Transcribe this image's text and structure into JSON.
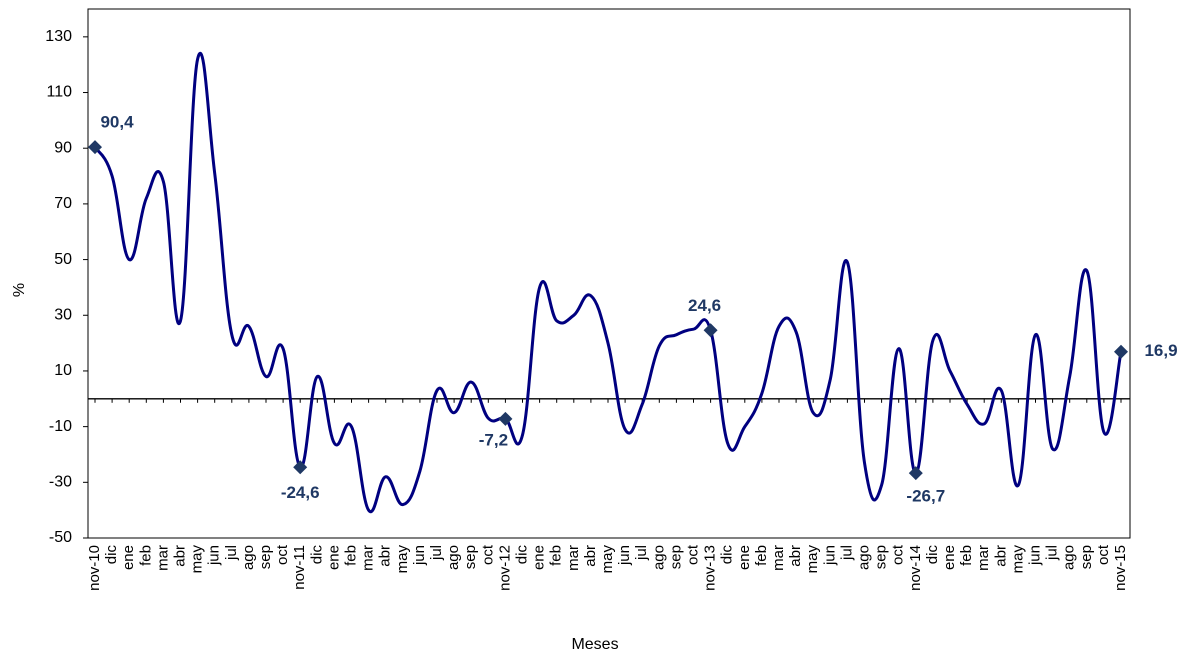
{
  "chart_data": {
    "type": "line",
    "x_label": "Meses",
    "y_label": "%",
    "categories": [
      "nov-10",
      "dic",
      "ene",
      "feb",
      "mar",
      "abr",
      "may",
      "jun",
      "jul",
      "ago",
      "sep",
      "oct",
      "nov-11",
      "dic",
      "ene",
      "feb",
      "mar",
      "abr",
      "may",
      "jun",
      "jul",
      "ago",
      "sep",
      "oct",
      "nov-12",
      "dic",
      "ene",
      "feb",
      "mar",
      "abr",
      "may",
      "jun",
      "jul",
      "ago",
      "sep",
      "oct",
      "nov-13",
      "dic",
      "ene",
      "feb",
      "mar",
      "abr",
      "may",
      "jun",
      "jul",
      "ago",
      "sep",
      "oct",
      "nov-14",
      "dic",
      "ene",
      "feb",
      "mar",
      "abr",
      "may",
      "jun",
      "jul",
      "ago",
      "sep",
      "oct",
      "nov-15"
    ],
    "values": [
      90.4,
      80,
      50,
      72,
      78,
      28,
      122,
      81,
      23,
      26,
      8,
      18,
      -24.6,
      8,
      -16,
      -10,
      -40,
      -28,
      -38,
      -26,
      3,
      -5,
      6,
      -7,
      -7.2,
      -13,
      40,
      28,
      30,
      37,
      20,
      -11,
      -2,
      19,
      23,
      25,
      24.6,
      -16,
      -10,
      2,
      26,
      24,
      -5,
      7,
      49,
      -23,
      -31,
      18,
      -26.7,
      21,
      10,
      -2,
      -9,
      3,
      -31,
      23,
      -18,
      8,
      46,
      -12,
      16.9
    ],
    "value_labels": [
      "90,4",
      null,
      null,
      null,
      null,
      null,
      null,
      null,
      null,
      null,
      null,
      null,
      "-24,6",
      null,
      null,
      null,
      null,
      null,
      null,
      null,
      null,
      null,
      null,
      null,
      "-7,2",
      null,
      null,
      null,
      null,
      null,
      null,
      null,
      null,
      null,
      null,
      null,
      "24,6",
      null,
      null,
      null,
      null,
      null,
      null,
      null,
      null,
      null,
      null,
      null,
      "-26,7",
      null,
      null,
      null,
      null,
      null,
      null,
      null,
      null,
      null,
      null,
      null,
      "16,9"
    ],
    "color": "#000080",
    "marker_color": "#1f3864",
    "ylim": [
      -50,
      140
    ],
    "yticks": [
      -50,
      -30,
      -10,
      10,
      30,
      50,
      70,
      90,
      110,
      130
    ]
  }
}
